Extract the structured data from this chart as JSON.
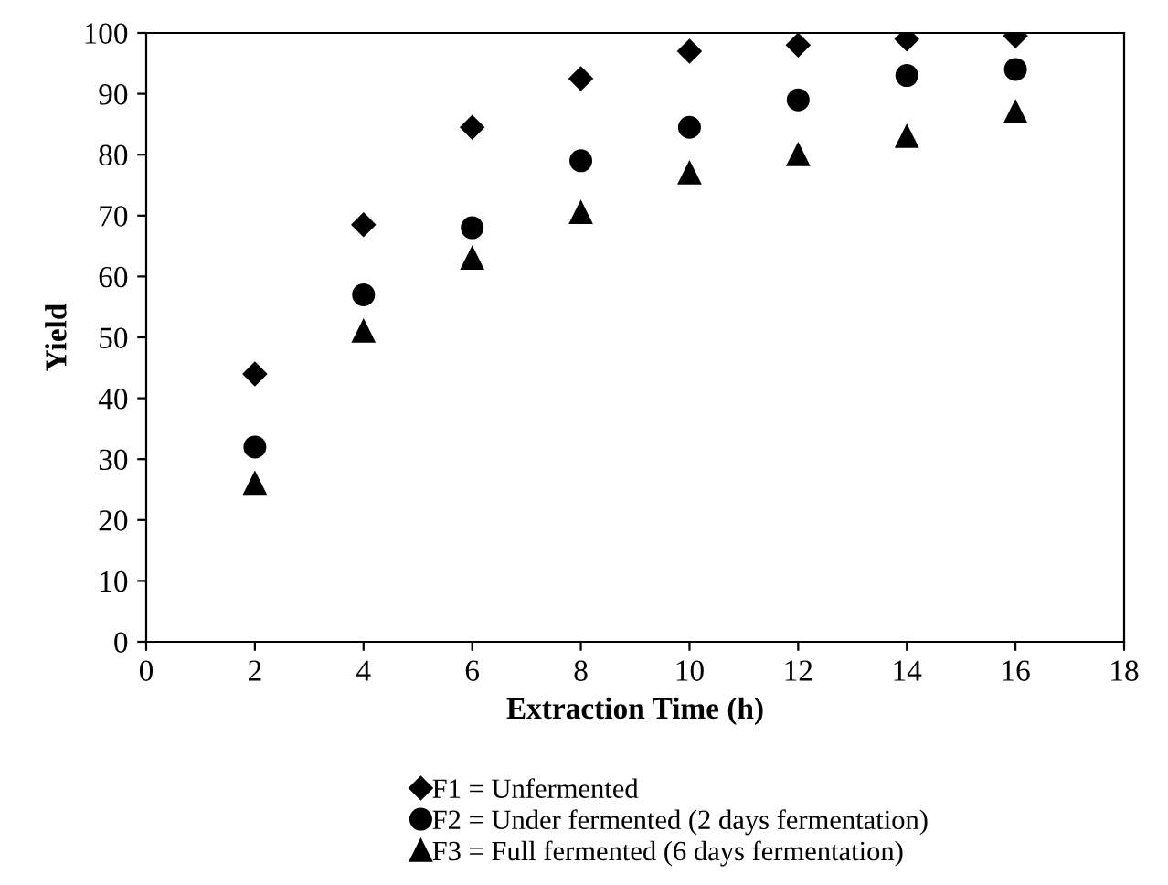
{
  "chart_data": {
    "type": "scatter",
    "xlabel": "Extraction Time (h)",
    "ylabel": "Yield",
    "x": [
      2,
      4,
      6,
      8,
      10,
      12,
      14,
      16
    ],
    "series": [
      {
        "name": "F1 = Unfermented",
        "color": "#000000",
        "marker": "diamond",
        "values": [
          44,
          68.5,
          84.5,
          92.5,
          97,
          98,
          99,
          99.5
        ]
      },
      {
        "name": "F2 = Under fermented (2 days fermentation)",
        "color": "#000000",
        "marker": "circle",
        "values": [
          32,
          57,
          68,
          79,
          84.5,
          89,
          93,
          94
        ]
      },
      {
        "name": "F3 = Full fermented (6 days fermentation)",
        "color": "#000000",
        "marker": "triangle",
        "values": [
          26,
          51,
          63,
          70.5,
          77,
          80,
          83,
          87
        ]
      }
    ],
    "xlim": [
      0,
      18
    ],
    "xticks": [
      0,
      2,
      4,
      6,
      8,
      10,
      12,
      14,
      16,
      18
    ],
    "ylim": [
      0,
      100
    ],
    "yticks": [
      0,
      10,
      20,
      30,
      40,
      50,
      60,
      70,
      80,
      90,
      100
    ],
    "grid": false,
    "legend": "bottom"
  }
}
